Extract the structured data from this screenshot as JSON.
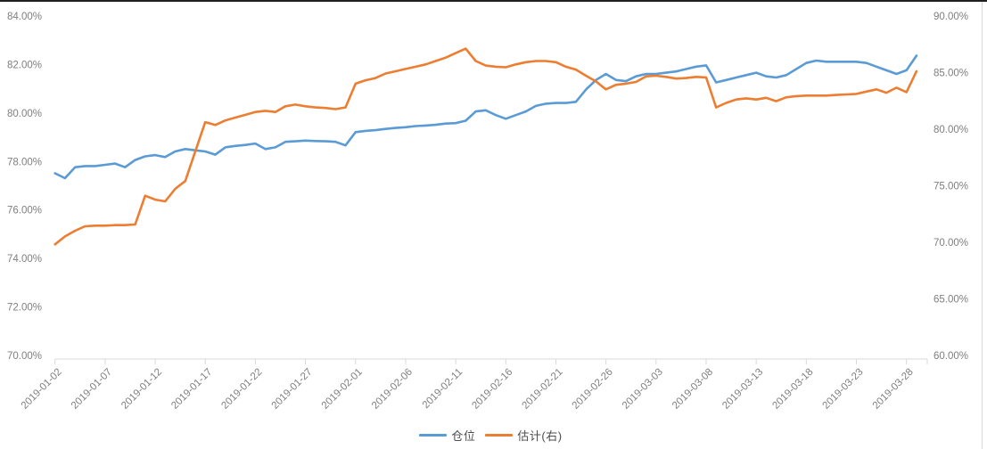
{
  "chart_data": {
    "type": "line",
    "title": "",
    "grid": "off",
    "legend_position": "bottom",
    "x": [
      "2019-01-02",
      "2019-01-03",
      "2019-01-04",
      "2019-01-05",
      "2019-01-06",
      "2019-01-07",
      "2019-01-08",
      "2019-01-09",
      "2019-01-10",
      "2019-01-11",
      "2019-01-12",
      "2019-01-13",
      "2019-01-14",
      "2019-01-15",
      "2019-01-16",
      "2019-01-17",
      "2019-01-18",
      "2019-01-19",
      "2019-01-20",
      "2019-01-21",
      "2019-01-22",
      "2019-01-23",
      "2019-01-24",
      "2019-01-25",
      "2019-01-26",
      "2019-01-27",
      "2019-01-28",
      "2019-01-29",
      "2019-01-30",
      "2019-01-31",
      "2019-02-01",
      "2019-02-02",
      "2019-02-03",
      "2019-02-04",
      "2019-02-05",
      "2019-02-06",
      "2019-02-07",
      "2019-02-08",
      "2019-02-09",
      "2019-02-10",
      "2019-02-11",
      "2019-02-12",
      "2019-02-13",
      "2019-02-14",
      "2019-02-15",
      "2019-02-16",
      "2019-02-17",
      "2019-02-18",
      "2019-02-19",
      "2019-02-20",
      "2019-02-21",
      "2019-02-22",
      "2019-02-23",
      "2019-02-24",
      "2019-02-25",
      "2019-02-26",
      "2019-02-27",
      "2019-02-28",
      "2019-03-01",
      "2019-03-02",
      "2019-03-03",
      "2019-03-04",
      "2019-03-05",
      "2019-03-06",
      "2019-03-07",
      "2019-03-08",
      "2019-03-09",
      "2019-03-10",
      "2019-03-11",
      "2019-03-12",
      "2019-03-13",
      "2019-03-14",
      "2019-03-15",
      "2019-03-16",
      "2019-03-17",
      "2019-03-18",
      "2019-03-19",
      "2019-03-20",
      "2019-03-21",
      "2019-03-22",
      "2019-03-23",
      "2019-03-24",
      "2019-03-25",
      "2019-03-26",
      "2019-03-27",
      "2019-03-28",
      "2019-03-29"
    ],
    "x_tick_labels": [
      "2019-01-02",
      "2019-01-07",
      "2019-01-12",
      "2019-01-17",
      "2019-01-22",
      "2019-01-27",
      "2019-02-01",
      "2019-02-06",
      "2019-02-11",
      "2019-02-16",
      "2019-02-21",
      "2019-02-26",
      "2019-03-03",
      "2019-03-08",
      "2019-03-13",
      "2019-03-18",
      "2019-03-23",
      "2019-03-28"
    ],
    "left_axis": {
      "min": 70,
      "max": 84,
      "tick_labels": [
        "84.00%",
        "82.00%",
        "80.00%",
        "78.00%",
        "76.00%",
        "74.00%",
        "72.00%",
        "70.00%"
      ]
    },
    "right_axis": {
      "min": 60,
      "max": 90,
      "tick_labels": [
        "90.00%",
        "85.00%",
        "80.00%",
        "75.00%",
        "70.00%",
        "65.00%",
        "60.00%"
      ]
    },
    "series": [
      {
        "id": "position",
        "name": "仓位",
        "axis": "left",
        "color": "#5B9BD5",
        "values": [
          77.55,
          77.35,
          77.8,
          77.85,
          77.85,
          77.9,
          77.95,
          77.8,
          78.1,
          78.25,
          78.3,
          78.22,
          78.45,
          78.55,
          78.5,
          78.45,
          78.32,
          78.62,
          78.68,
          78.72,
          78.78,
          78.55,
          78.62,
          78.85,
          78.87,
          78.9,
          78.88,
          78.87,
          78.85,
          78.7,
          79.25,
          79.3,
          79.33,
          79.38,
          79.42,
          79.45,
          79.5,
          79.52,
          79.55,
          79.6,
          79.62,
          79.72,
          80.1,
          80.15,
          79.95,
          79.8,
          79.95,
          80.1,
          80.33,
          80.42,
          80.45,
          80.45,
          80.5,
          81.0,
          81.4,
          81.65,
          81.4,
          81.35,
          81.55,
          81.65,
          81.65,
          81.7,
          81.75,
          81.85,
          81.95,
          82.0,
          81.3,
          81.4,
          81.5,
          81.6,
          81.7,
          81.55,
          81.5,
          81.6,
          81.85,
          82.1,
          82.2,
          82.15,
          82.15,
          82.15,
          82.15,
          82.1,
          81.95,
          81.8,
          81.65,
          81.8,
          82.4
        ]
      },
      {
        "id": "estimate-right",
        "name": "估计(右)",
        "axis": "right",
        "color": "#ED7D31",
        "values": [
          69.9,
          70.6,
          71.1,
          71.5,
          71.55,
          71.55,
          71.6,
          71.6,
          71.65,
          74.2,
          73.85,
          73.7,
          74.8,
          75.5,
          78.1,
          80.7,
          80.45,
          80.85,
          81.1,
          81.35,
          81.6,
          81.7,
          81.6,
          82.1,
          82.25,
          82.1,
          82.0,
          81.95,
          81.85,
          82.0,
          84.1,
          84.4,
          84.6,
          85.0,
          85.2,
          85.4,
          85.6,
          85.8,
          86.1,
          86.4,
          86.8,
          87.2,
          86.1,
          85.7,
          85.6,
          85.55,
          85.8,
          86.0,
          86.1,
          86.1,
          86.0,
          85.6,
          85.35,
          84.8,
          84.3,
          83.6,
          84.0,
          84.1,
          84.25,
          84.75,
          84.8,
          84.7,
          84.55,
          84.6,
          84.7,
          84.65,
          82.0,
          82.4,
          82.7,
          82.8,
          82.7,
          82.85,
          82.55,
          82.9,
          83.0,
          83.05,
          83.05,
          83.05,
          83.1,
          83.15,
          83.2,
          83.4,
          83.6,
          83.3,
          83.75,
          83.35,
          85.2
        ]
      }
    ]
  },
  "style": {
    "axis_text_color": "#7f7f7f",
    "axis_line_color": "#d9d9d9",
    "top_border_color": "#1f1f1f",
    "splitter_color": "#d9d9d9"
  }
}
